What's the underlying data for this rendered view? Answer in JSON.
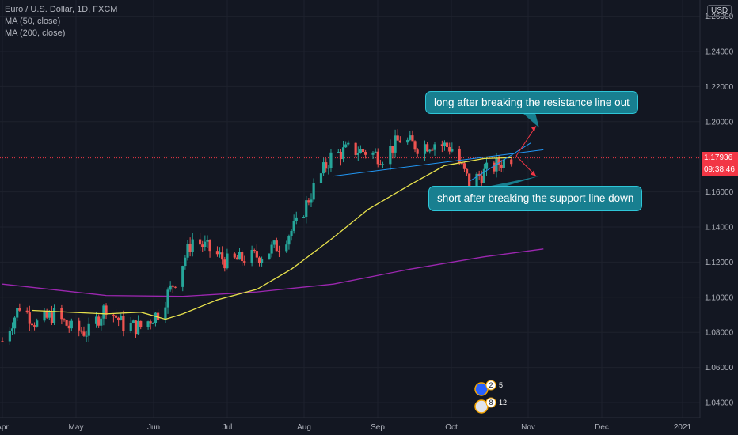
{
  "legend": {
    "symbol": "Euro / U.S. Dollar, 1D, FXCM",
    "ma50": "MA (50, close)",
    "ma200": "MA (200, close)"
  },
  "currency_button": "USD",
  "price_tag": {
    "value": "1.17936",
    "color": "#f23645"
  },
  "countdown_tag": {
    "value": "09:38:46",
    "color": "#f23645"
  },
  "annotations": {
    "long": "long after breaking the resistance line out",
    "short": "short after breaking the support line down"
  },
  "event_badges": [
    {
      "icon": "eu-flag-icon",
      "count": "2",
      "extra": "5"
    },
    {
      "icon": "us-flag-icon",
      "count": "8",
      "extra": "12"
    }
  ],
  "colors": {
    "background": "#131722",
    "grid": "#1e222d",
    "up": "#26a69a",
    "down": "#ef5350",
    "ma50": "#e8e24c",
    "ma200": "#9c27b0",
    "trendline": "#2196f3",
    "annotation_bg": "#187f90"
  },
  "chart_data": {
    "type": "candlestick",
    "title": "Euro / U.S. Dollar, 1D, FXCM",
    "x_ticks": [
      "Apr",
      "May",
      "Jun",
      "Jul",
      "Aug",
      "Sep",
      "Oct",
      "Nov",
      "Dec",
      "2021"
    ],
    "y_ticks": [
      "1.04000",
      "1.06000",
      "1.08000",
      "1.10000",
      "1.12000",
      "1.14000",
      "1.16000",
      "1.18000",
      "1.20000",
      "1.22000",
      "1.24000",
      "1.26000"
    ],
    "ylim": [
      1.0365,
      1.2685
    ],
    "grid": true,
    "last_price": 1.17936,
    "series": [
      {
        "name": "MA (50, close)",
        "points": [
          [
            "2020-04-01",
            1.0925
          ],
          [
            "2020-05-01",
            1.0905
          ],
          [
            "2020-05-15",
            1.0915
          ],
          [
            "2020-05-25",
            1.0875
          ],
          [
            "2020-06-01",
            1.0905
          ],
          [
            "2020-06-15",
            1.0985
          ],
          [
            "2020-07-01",
            1.1045
          ],
          [
            "2020-07-15",
            1.116
          ],
          [
            "2020-08-01",
            1.134
          ],
          [
            "2020-08-15",
            1.15
          ],
          [
            "2020-09-01",
            1.164
          ],
          [
            "2020-09-15",
            1.175
          ],
          [
            "2020-10-01",
            1.179
          ],
          [
            "2020-10-12",
            1.1795
          ]
        ]
      },
      {
        "name": "MA (200, close)",
        "points": [
          [
            "2020-03-20",
            1.1075
          ],
          [
            "2020-05-01",
            1.101
          ],
          [
            "2020-06-01",
            1.1005
          ],
          [
            "2020-07-01",
            1.103
          ],
          [
            "2020-08-01",
            1.1075
          ],
          [
            "2020-09-01",
            1.116
          ],
          [
            "2020-10-01",
            1.123
          ],
          [
            "2020-10-25",
            1.1275
          ]
        ]
      }
    ],
    "candles_summary": {
      "start": "2020-03-20",
      "end": "2020-10-12",
      "low": 1.0735,
      "high": 1.201,
      "last_close": 1.17936
    },
    "trendlines": [
      {
        "label": "resistance",
        "from": [
          "2020-08-01",
          1.169
        ],
        "to": [
          "2020-10-25",
          1.184
        ]
      },
      {
        "label": "support",
        "from": [
          "2020-09-25",
          1.166
        ],
        "to": [
          "2020-10-20",
          1.188
        ]
      }
    ]
  }
}
